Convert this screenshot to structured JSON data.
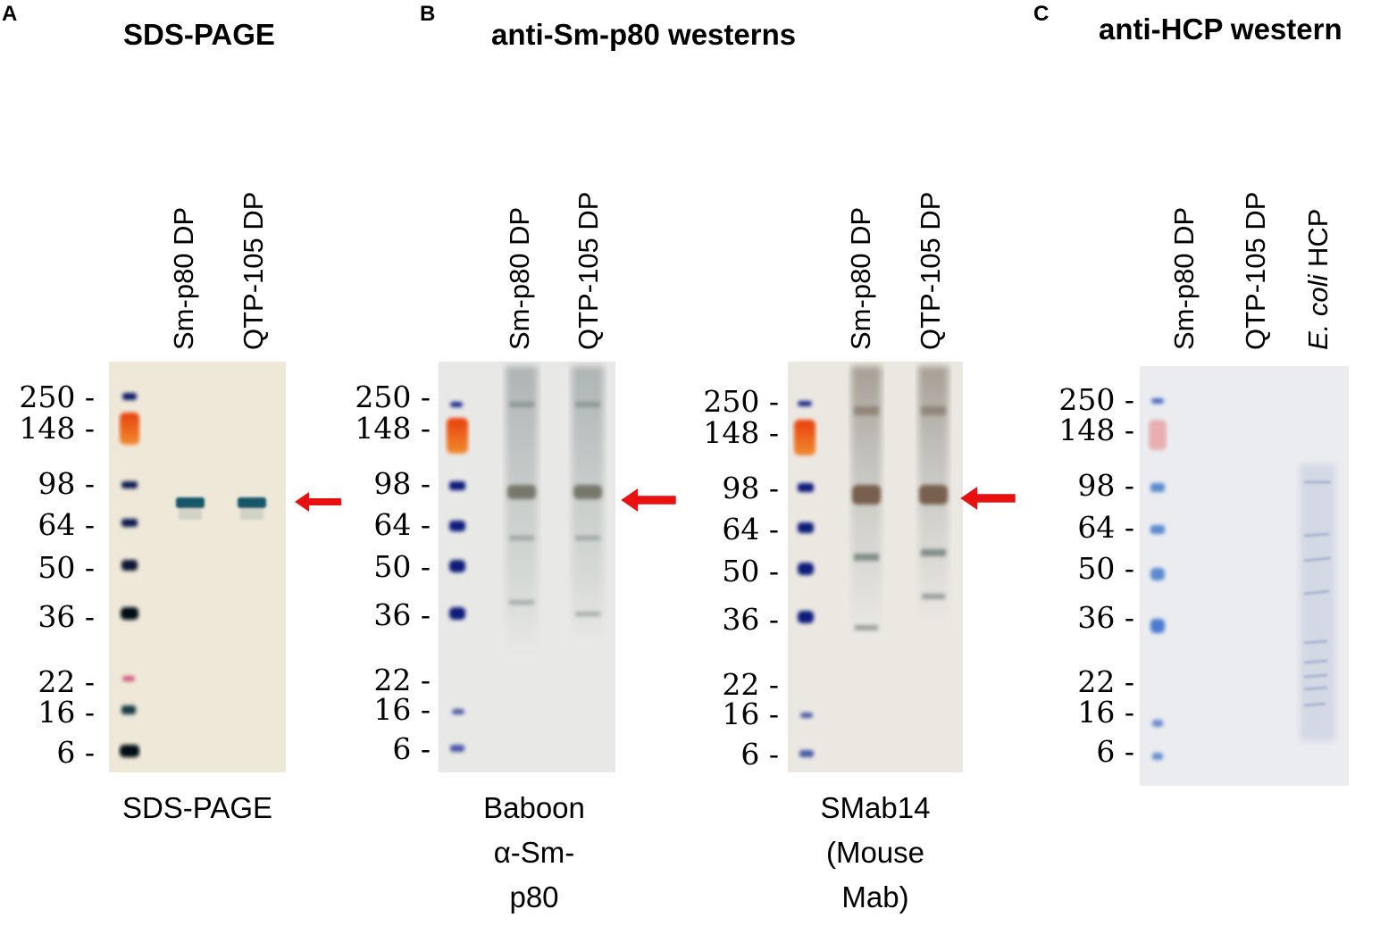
{
  "panels": [
    {
      "letter": "A",
      "title": "SDS-PAGE"
    },
    {
      "letter": "B",
      "title": "anti-Sm-p80 westerns"
    },
    {
      "letter": "C",
      "title": "anti-HCP western"
    }
  ],
  "lanes": {
    "sm": "Sm-p80 DP",
    "qtp": "QTP-105 DP",
    "ecoli_italic": "E. coli",
    "ecoli_rest": " HCP"
  },
  "mw_markers": [
    "250 -",
    "148 -",
    "98 -",
    "64 -",
    "50 -",
    "36 -",
    "22 -",
    "16 -",
    "6 -"
  ],
  "captions": {
    "sds": "SDS-PAGE",
    "baboon": [
      "Baboon",
      "α-Sm-",
      "p80"
    ],
    "smab": [
      "SMab14",
      "(Mouse",
      "Mab)"
    ]
  },
  "colors": {
    "arrow": "#e81010",
    "gel_bg": "#efeadc",
    "ladder_blue": "#0b1a6a",
    "ladder_red": "#e83a0a",
    "band_teal": "#13566a",
    "hcp_bg": "#e9ecf2"
  },
  "icons": {
    "arrow": "red-arrow-icon"
  }
}
